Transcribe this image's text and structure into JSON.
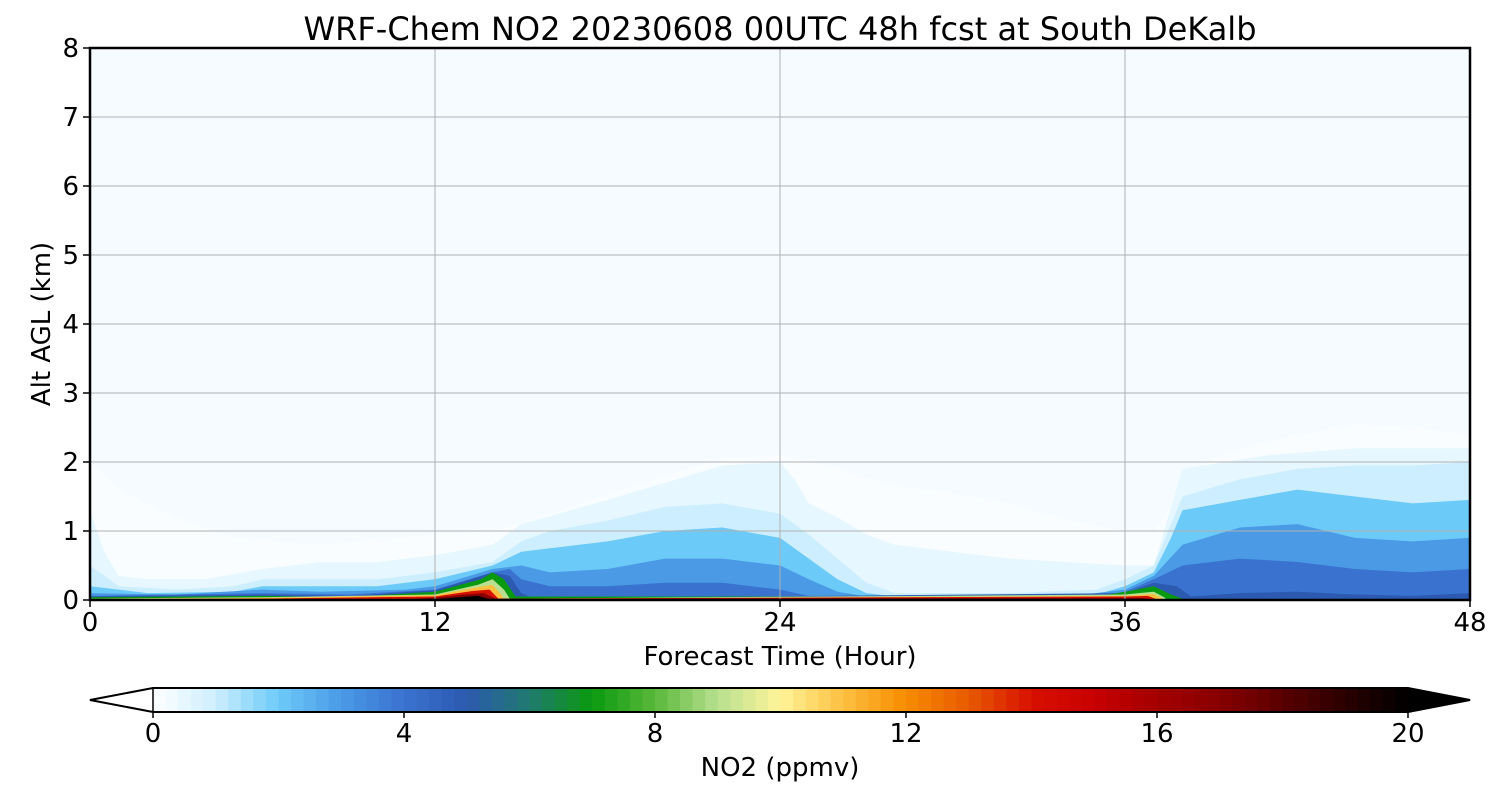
{
  "chart_data": {
    "type": "heatmap",
    "title": "WRF-Chem NO2  20230608 00UTC 48h fcst at South DeKalb",
    "xlabel": "Forecast Time (Hour)",
    "ylabel": "Alt AGL (km)",
    "xlim": [
      0,
      48
    ],
    "ylim": [
      0,
      8
    ],
    "x_ticks": [
      "0",
      "12",
      "24",
      "36",
      "48"
    ],
    "y_ticks": [
      "0",
      "1",
      "2",
      "3",
      "4",
      "5",
      "6",
      "7",
      "8"
    ],
    "grid": true,
    "colorbar": {
      "label": "NO2  (ppmv)",
      "range": [
        0,
        20
      ],
      "ticks": [
        "0",
        "4",
        "8",
        "12",
        "16",
        "20"
      ],
      "extend": "both",
      "colors": [
        {
          "v": 0,
          "c": "#ffffff"
        },
        {
          "v": 1,
          "c": "#cdeefe"
        },
        {
          "v": 2,
          "c": "#6ccaf8"
        },
        {
          "v": 3,
          "c": "#4a9ae6"
        },
        {
          "v": 4,
          "c": "#3a72d0"
        },
        {
          "v": 5,
          "c": "#2c5ab0"
        },
        {
          "v": 6,
          "c": "#207a6e"
        },
        {
          "v": 7,
          "c": "#0a9a10"
        },
        {
          "v": 8,
          "c": "#5ab83a"
        },
        {
          "v": 9,
          "c": "#b8e090"
        },
        {
          "v": 10,
          "c": "#fff49a"
        },
        {
          "v": 11,
          "c": "#fcc040"
        },
        {
          "v": 12,
          "c": "#f88c00"
        },
        {
          "v": 13,
          "c": "#e85a00"
        },
        {
          "v": 14,
          "c": "#d81000"
        },
        {
          "v": 15,
          "c": "#c80000"
        },
        {
          "v": 16,
          "c": "#a40000"
        },
        {
          "v": 17,
          "c": "#880000"
        },
        {
          "v": 18,
          "c": "#5a0000"
        },
        {
          "v": 19,
          "c": "#2a0000"
        },
        {
          "v": 20,
          "c": "#000000"
        }
      ]
    },
    "layers": [
      {
        "value": 0.1,
        "top": [
          [
            0,
            2.0
          ],
          [
            1,
            1.6
          ],
          [
            3,
            1.2
          ],
          [
            5,
            0.9
          ],
          [
            8,
            0.8
          ],
          [
            12,
            0.95
          ],
          [
            14,
            1.0
          ],
          [
            16,
            1.25
          ],
          [
            20,
            1.8
          ],
          [
            22,
            2.05
          ],
          [
            24,
            2.1
          ],
          [
            26,
            1.9
          ],
          [
            28,
            1.65
          ],
          [
            30,
            1.55
          ],
          [
            32,
            1.4
          ],
          [
            34,
            1.15
          ],
          [
            36,
            1.0
          ],
          [
            37,
            1.0
          ],
          [
            38,
            1.6
          ],
          [
            39,
            2.05
          ],
          [
            41,
            2.3
          ],
          [
            44,
            2.55
          ],
          [
            46,
            2.5
          ],
          [
            48,
            2.4
          ]
        ]
      },
      {
        "value": 0.5,
        "top": [
          [
            0,
            1.3
          ],
          [
            0.5,
            0.7
          ],
          [
            1,
            0.35
          ],
          [
            2,
            0.3
          ],
          [
            4,
            0.3
          ],
          [
            6,
            0.45
          ],
          [
            8,
            0.55
          ],
          [
            10,
            0.55
          ],
          [
            12,
            0.65
          ],
          [
            14,
            0.8
          ],
          [
            15,
            1.1
          ],
          [
            18,
            1.45
          ],
          [
            20,
            1.7
          ],
          [
            22,
            1.95
          ],
          [
            24,
            2.0
          ],
          [
            24.5,
            1.75
          ],
          [
            25,
            1.4
          ],
          [
            26,
            1.2
          ],
          [
            27,
            0.95
          ],
          [
            28,
            0.8
          ],
          [
            30,
            0.7
          ],
          [
            32,
            0.6
          ],
          [
            34,
            0.55
          ],
          [
            36,
            0.5
          ],
          [
            37,
            0.5
          ],
          [
            37.5,
            1.2
          ],
          [
            38,
            1.9
          ],
          [
            41,
            2.1
          ],
          [
            44,
            2.2
          ],
          [
            46,
            2.2
          ],
          [
            48,
            2.2
          ]
        ]
      },
      {
        "value": 1.0,
        "top": [
          [
            0,
            0.5
          ],
          [
            1,
            0.2
          ],
          [
            3,
            0.15
          ],
          [
            5,
            0.2
          ],
          [
            6,
            0.3
          ],
          [
            8,
            0.3
          ],
          [
            10,
            0.3
          ],
          [
            12,
            0.4
          ],
          [
            14,
            0.55
          ],
          [
            15,
            0.85
          ],
          [
            16,
            1.0
          ],
          [
            18,
            1.15
          ],
          [
            20,
            1.35
          ],
          [
            22,
            1.4
          ],
          [
            24,
            1.25
          ],
          [
            25,
            0.95
          ],
          [
            26,
            0.6
          ],
          [
            27,
            0.25
          ],
          [
            28,
            0.1
          ],
          [
            32,
            0.1
          ],
          [
            35,
            0.15
          ],
          [
            36,
            0.3
          ],
          [
            37,
            0.5
          ],
          [
            37.5,
            1.0
          ],
          [
            38,
            1.5
          ],
          [
            40,
            1.75
          ],
          [
            42,
            1.9
          ],
          [
            44,
            1.95
          ],
          [
            46,
            1.95
          ],
          [
            48,
            2.0
          ]
        ]
      },
      {
        "value": 2.0,
        "top": [
          [
            0,
            0.2
          ],
          [
            2,
            0.1
          ],
          [
            5,
            0.12
          ],
          [
            6,
            0.2
          ],
          [
            8,
            0.2
          ],
          [
            10,
            0.2
          ],
          [
            12,
            0.3
          ],
          [
            14,
            0.5
          ],
          [
            15,
            0.7
          ],
          [
            16,
            0.75
          ],
          [
            18,
            0.85
          ],
          [
            20,
            1.0
          ],
          [
            22,
            1.05
          ],
          [
            24,
            0.9
          ],
          [
            25,
            0.6
          ],
          [
            26,
            0.3
          ],
          [
            27,
            0.1
          ],
          [
            28,
            0.05
          ],
          [
            35,
            0.08
          ],
          [
            36,
            0.2
          ],
          [
            37,
            0.4
          ],
          [
            37.6,
            0.9
          ],
          [
            38,
            1.3
          ],
          [
            40,
            1.45
          ],
          [
            42,
            1.6
          ],
          [
            44,
            1.5
          ],
          [
            46,
            1.4
          ],
          [
            48,
            1.45
          ]
        ]
      },
      {
        "value": 3.0,
        "top": [
          [
            0,
            0.1
          ],
          [
            3,
            0.08
          ],
          [
            6,
            0.15
          ],
          [
            8,
            0.12
          ],
          [
            11,
            0.15
          ],
          [
            12,
            0.2
          ],
          [
            14,
            0.45
          ],
          [
            15,
            0.5
          ],
          [
            16,
            0.4
          ],
          [
            18,
            0.45
          ],
          [
            20,
            0.6
          ],
          [
            22,
            0.6
          ],
          [
            24,
            0.5
          ],
          [
            25,
            0.3
          ],
          [
            26,
            0.12
          ],
          [
            27,
            0.05
          ],
          [
            34,
            0.05
          ],
          [
            36,
            0.15
          ],
          [
            37,
            0.35
          ],
          [
            38,
            0.8
          ],
          [
            40,
            1.05
          ],
          [
            42,
            1.1
          ],
          [
            44,
            0.9
          ],
          [
            46,
            0.85
          ],
          [
            48,
            0.9
          ]
        ]
      },
      {
        "value": 4.0,
        "top": [
          [
            0,
            0.06
          ],
          [
            6,
            0.1
          ],
          [
            9,
            0.08
          ],
          [
            12,
            0.15
          ],
          [
            14,
            0.4
          ],
          [
            14.6,
            0.45
          ],
          [
            15,
            0.3
          ],
          [
            16,
            0.2
          ],
          [
            18,
            0.2
          ],
          [
            20,
            0.25
          ],
          [
            22,
            0.25
          ],
          [
            24,
            0.15
          ],
          [
            25,
            0.06
          ],
          [
            35,
            0.04
          ],
          [
            36,
            0.12
          ],
          [
            37,
            0.3
          ],
          [
            38,
            0.5
          ],
          [
            40,
            0.6
          ],
          [
            42,
            0.55
          ],
          [
            44,
            0.45
          ],
          [
            46,
            0.4
          ],
          [
            48,
            0.45
          ]
        ]
      },
      {
        "value": 5.0,
        "top": [
          [
            0,
            0.05
          ],
          [
            6,
            0.08
          ],
          [
            9,
            0.06
          ],
          [
            12,
            0.14
          ],
          [
            14,
            0.4
          ],
          [
            14.6,
            0.35
          ],
          [
            15,
            0.1
          ],
          [
            15.4,
            0.02
          ],
          [
            36,
            0.1
          ],
          [
            37,
            0.25
          ],
          [
            37.8,
            0.2
          ],
          [
            38.3,
            0.05
          ],
          [
            40,
            0.1
          ],
          [
            42,
            0.12
          ],
          [
            44,
            0.08
          ],
          [
            46,
            0.06
          ],
          [
            48,
            0.1
          ]
        ]
      },
      {
        "value": 7.0,
        "top": [
          [
            0,
            0.04
          ],
          [
            6,
            0.06
          ],
          [
            9,
            0.04
          ],
          [
            12,
            0.12
          ],
          [
            13.6,
            0.3
          ],
          [
            14,
            0.4
          ],
          [
            14.4,
            0.3
          ],
          [
            14.8,
            0.05
          ],
          [
            35,
            0.05
          ],
          [
            36,
            0.12
          ],
          [
            37,
            0.2
          ],
          [
            37.6,
            0.08
          ],
          [
            38,
            0.02
          ]
        ]
      },
      {
        "value": 9.0,
        "top": [
          [
            0,
            0.02
          ],
          [
            6,
            0.04
          ],
          [
            12,
            0.08
          ],
          [
            13.5,
            0.22
          ],
          [
            14,
            0.3
          ],
          [
            14.4,
            0.15
          ],
          [
            14.6,
            0.02
          ],
          [
            36,
            0.08
          ],
          [
            37,
            0.12
          ],
          [
            37.4,
            0.03
          ]
        ]
      },
      {
        "value": 11.0,
        "top": [
          [
            0,
            0.015
          ],
          [
            6,
            0.03
          ],
          [
            12,
            0.07
          ],
          [
            13.4,
            0.18
          ],
          [
            14,
            0.22
          ],
          [
            14.3,
            0.08
          ],
          [
            14.4,
            0.01
          ],
          [
            36,
            0.06
          ],
          [
            37,
            0.09
          ],
          [
            37.3,
            0.02
          ]
        ]
      },
      {
        "value": 14.0,
        "top": [
          [
            0,
            0.01
          ],
          [
            6,
            0.02
          ],
          [
            12,
            0.05
          ],
          [
            13.3,
            0.13
          ],
          [
            13.9,
            0.15
          ],
          [
            14.2,
            0.02
          ],
          [
            36,
            0.05
          ],
          [
            36.8,
            0.06
          ],
          [
            37.1,
            0.01
          ]
        ]
      },
      {
        "value": 17.0,
        "top": [
          [
            11,
            0.01
          ],
          [
            12,
            0.035
          ],
          [
            13,
            0.08
          ],
          [
            13.7,
            0.1
          ],
          [
            14.1,
            0.02
          ],
          [
            36,
            0.03
          ],
          [
            36.6,
            0.03
          ],
          [
            36.9,
            0.01
          ]
        ]
      },
      {
        "value": 20.0,
        "top": [
          [
            12,
            0.01
          ],
          [
            12.8,
            0.04
          ],
          [
            13.5,
            0.06
          ],
          [
            13.9,
            0.01
          ]
        ]
      }
    ]
  }
}
